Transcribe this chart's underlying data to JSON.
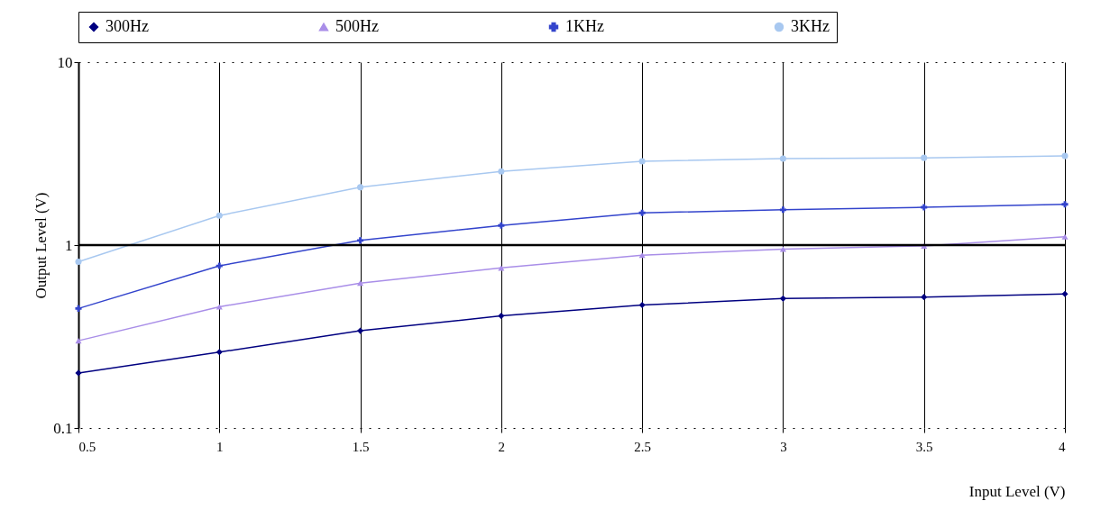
{
  "chart_data": {
    "type": "line",
    "xlabel": "Input Level (V)",
    "ylabel": "Output Level (V)",
    "x": [
      0.5,
      1,
      1.5,
      2,
      2.5,
      3,
      3.5,
      4
    ],
    "series": [
      {
        "name": "300Hz",
        "color": "#000080",
        "marker": "diamond",
        "values": [
          0.2,
          0.26,
          0.34,
          0.41,
          0.47,
          0.51,
          0.52,
          0.54
        ]
      },
      {
        "name": "500Hz",
        "color": "#a98ee8",
        "marker": "triangle",
        "values": [
          0.3,
          0.46,
          0.62,
          0.75,
          0.88,
          0.95,
          0.99,
          1.11
        ]
      },
      {
        "name": "1KHz",
        "color": "#3344cc",
        "marker": "cross",
        "values": [
          0.45,
          0.77,
          1.06,
          1.28,
          1.5,
          1.56,
          1.61,
          1.67
        ]
      },
      {
        "name": "3KHz",
        "color": "#a8c8f0",
        "marker": "circle",
        "values": [
          0.81,
          1.45,
          2.07,
          2.53,
          2.87,
          2.97,
          3.0,
          3.07
        ]
      }
    ],
    "xlim": [
      0.5,
      4
    ],
    "xticks": [
      0.5,
      1,
      1.5,
      2,
      2.5,
      3,
      3.5,
      4
    ],
    "ylim": [
      0.1,
      10
    ],
    "yticks": [
      0.1,
      1,
      10
    ],
    "log": "y",
    "grid": "x",
    "legend": "top",
    "ref_lines": [
      {
        "axis": "y",
        "value": 1
      }
    ]
  }
}
